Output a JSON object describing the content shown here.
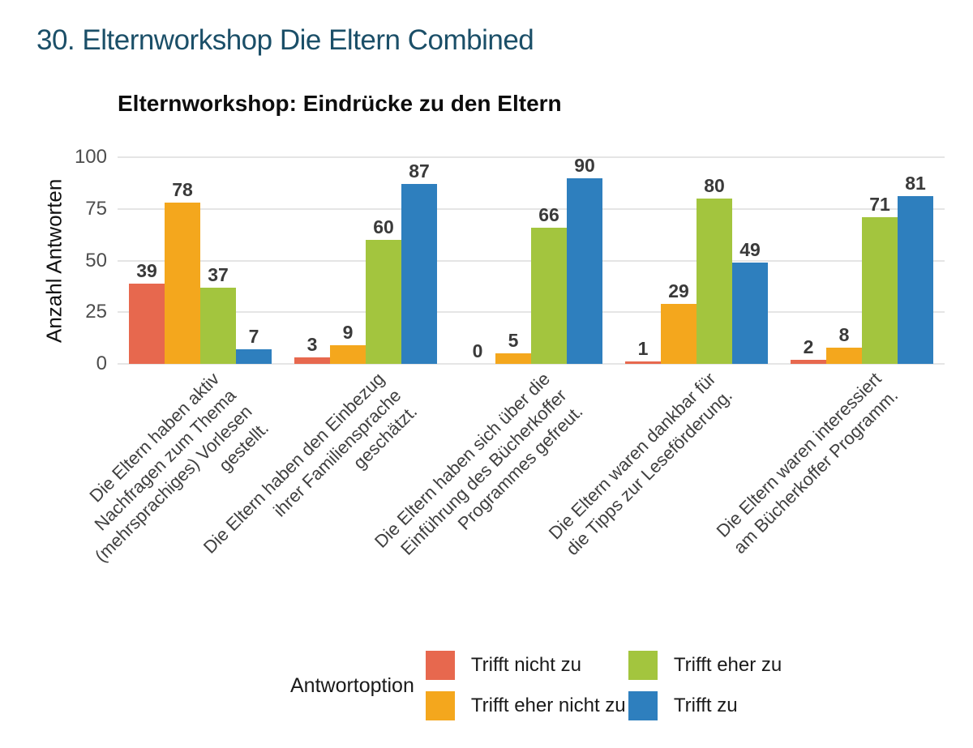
{
  "page_title": "30. Elternworkshop Die Eltern Combined",
  "chart_data": {
    "type": "bar",
    "title": "Elternworkshop: Eindrücke zu den Eltern",
    "xlabel": "",
    "ylabel": "Anzahl Antworten",
    "ylim": [
      0,
      100
    ],
    "yticks": [
      0,
      25,
      50,
      75,
      100
    ],
    "grid": "horizontal",
    "legend_title": "Antwortoption",
    "legend_position": "bottom",
    "categories": [
      [
        "Die Eltern haben aktiv",
        "Nachfragen zum Thema",
        "(mehrsprachiges) Vorlesen",
        "gestellt."
      ],
      [
        "Die Eltern haben den Einbezug",
        "ihrer Familiensprache",
        "geschätzt."
      ],
      [
        "Die Eltern haben sich über die",
        "Einführung des Bücherkoffer",
        "Programmes gefreut."
      ],
      [
        "Die Eltern waren dankbar für",
        "die Tipps zur Leseförderung."
      ],
      [
        "Die Eltern waren interessiert",
        "am Bücherkoffer Programm."
      ]
    ],
    "series": [
      {
        "name": "Trifft nicht zu",
        "color": "#e7684e",
        "values": [
          39,
          3,
          0,
          1,
          2
        ]
      },
      {
        "name": "Trifft eher nicht zu",
        "color": "#f4a71d",
        "values": [
          78,
          9,
          5,
          29,
          8
        ]
      },
      {
        "name": "Trifft eher zu",
        "color": "#a3c53e",
        "values": [
          37,
          60,
          66,
          80,
          71
        ]
      },
      {
        "name": "Trifft zu",
        "color": "#2e7fbe",
        "values": [
          7,
          87,
          90,
          49,
          81
        ]
      }
    ],
    "legend_columns": [
      [
        0,
        1
      ],
      [
        2,
        3
      ]
    ]
  },
  "colors": {
    "page_title": "#1b4f68",
    "axis_text": "#4d4d4d",
    "gridline": "#e5e5e5",
    "value_label": "#3a3a3a"
  }
}
